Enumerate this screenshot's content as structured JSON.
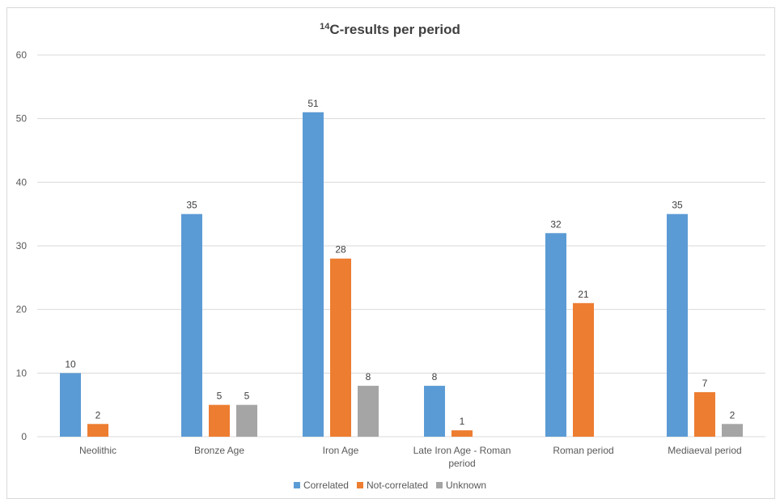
{
  "chart_data": {
    "type": "bar",
    "title_sup": "14",
    "title_main": "C-results per period",
    "categories": [
      [
        "Neolithic"
      ],
      [
        "Bronze Age"
      ],
      [
        "Iron Age"
      ],
      [
        "Late Iron Age - Roman",
        "period"
      ],
      [
        "Roman period"
      ],
      [
        "Mediaeval period"
      ]
    ],
    "series": [
      {
        "name": "Correlated",
        "color": "#5b9bd5",
        "values": [
          10,
          35,
          51,
          8,
          32,
          35
        ]
      },
      {
        "name": "Not-correlated",
        "color": "#ed7d31",
        "values": [
          2,
          5,
          28,
          1,
          21,
          7
        ]
      },
      {
        "name": "Unknown",
        "color": "#a5a5a5",
        "values": [
          null,
          5,
          8,
          null,
          null,
          2
        ]
      }
    ],
    "ylim": [
      0,
      60
    ],
    "yticks": [
      0,
      10,
      20,
      30,
      40,
      50,
      60
    ],
    "grid": true,
    "legend_position": "bottom",
    "gridline_color": "#d9d9d9"
  }
}
